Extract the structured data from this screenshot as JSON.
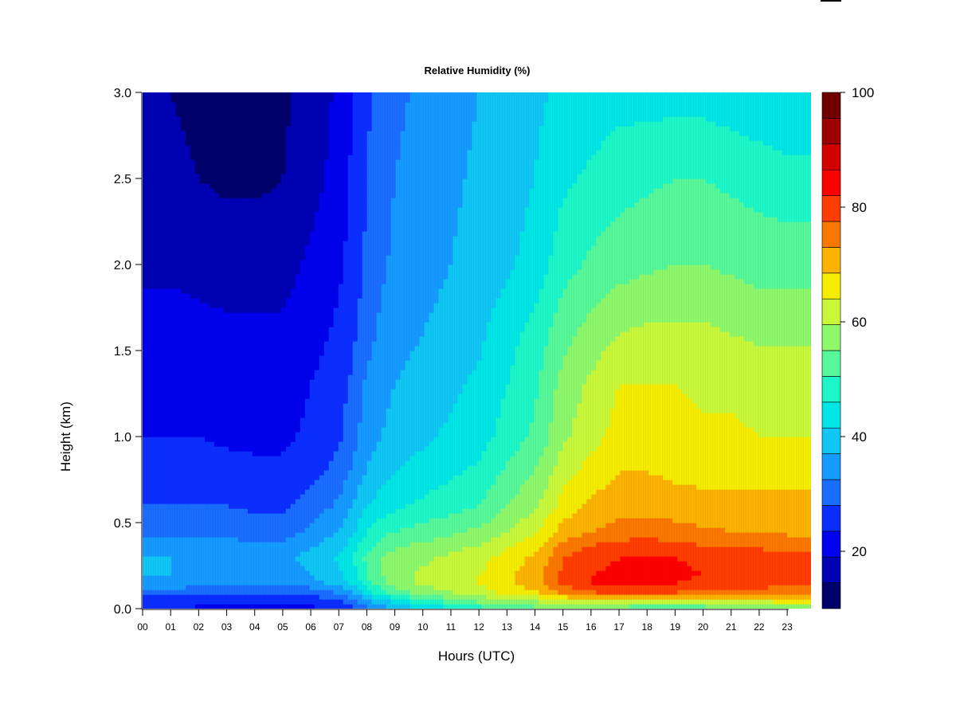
{
  "chart_data": {
    "type": "heatmap",
    "title": "Relative Humidity (%)",
    "xlabel": "Hours (UTC)",
    "ylabel": "Height (km)",
    "x_ticks": [
      "00",
      "01",
      "02",
      "03",
      "04",
      "05",
      "06",
      "07",
      "08",
      "09",
      "10",
      "11",
      "12",
      "13",
      "14",
      "15",
      "16",
      "17",
      "18",
      "19",
      "20",
      "21",
      "22",
      "23"
    ],
    "y_ticks": [
      "0.0",
      "0.5",
      "1.0",
      "1.5",
      "2.0",
      "2.5",
      "3.0"
    ],
    "xlim": [
      0,
      23.85
    ],
    "ylim": [
      0,
      3.0
    ],
    "colorbar": {
      "range": [
        10,
        100
      ],
      "step": 5,
      "tick_values": [
        20,
        40,
        60,
        80,
        100
      ],
      "tick_labels": [
        "20",
        "40",
        "60",
        "80",
        "100"
      ],
      "colors": [
        "#00006a",
        "#0000b4",
        "#0000ee",
        "#0b2eff",
        "#1a6eff",
        "#159bff",
        "#10c6f5",
        "#00e5e6",
        "#1df7c8",
        "#56f89a",
        "#8ef86b",
        "#c9f83a",
        "#f5ec00",
        "#fab300",
        "#fb7800",
        "#ff3d00",
        "#ff0000",
        "#d30000",
        "#9c0000",
        "#700000"
      ]
    },
    "height_levels_km": [
      0.0,
      0.05,
      0.1,
      0.15,
      0.2,
      0.3,
      0.35,
      0.45,
      0.6,
      0.8,
      1.0,
      1.3,
      1.6,
      2.0,
      2.5,
      3.0
    ],
    "time_hours_utc": [
      0,
      1,
      2,
      3,
      4,
      5,
      6,
      7,
      7.5,
      8,
      8.5,
      9,
      10,
      11,
      12,
      13,
      14,
      14.5,
      15,
      16,
      17,
      18,
      19,
      20,
      21,
      22,
      23,
      23.85
    ],
    "values_percent": [
      [
        25,
        25,
        24,
        24,
        23,
        23,
        24,
        26,
        29,
        33,
        36,
        40,
        44,
        48,
        52,
        55,
        58,
        60,
        60,
        58,
        56,
        55,
        55,
        56,
        57,
        58,
        62,
        62
      ],
      [
        28,
        28,
        27,
        27,
        26,
        26,
        27,
        30,
        34,
        40,
        44,
        48,
        54,
        58,
        62,
        64,
        66,
        68,
        70,
        72,
        72,
        70,
        70,
        70,
        70,
        72,
        72,
        72
      ],
      [
        33,
        33,
        32,
        32,
        31,
        31,
        32,
        36,
        40,
        48,
        53,
        58,
        62,
        65,
        68,
        72,
        75,
        78,
        82,
        85,
        88,
        88,
        86,
        85,
        85,
        84,
        82,
        82
      ],
      [
        38,
        38,
        37,
        37,
        36,
        36,
        38,
        42,
        46,
        53,
        58,
        62,
        66,
        68,
        70,
        74,
        78,
        82,
        86,
        90,
        91,
        92,
        90,
        89,
        88,
        87,
        85,
        85
      ],
      [
        40,
        40,
        39,
        39,
        38,
        38,
        40,
        44,
        48,
        56,
        60,
        63,
        66,
        68,
        70,
        74,
        78,
        82,
        86,
        90,
        91,
        92,
        91,
        90,
        89,
        88,
        86,
        86
      ],
      [
        40,
        40,
        39,
        39,
        38,
        38,
        42,
        46,
        50,
        56,
        60,
        62,
        64,
        66,
        68,
        72,
        76,
        80,
        85,
        88,
        90,
        90,
        90,
        89,
        88,
        87,
        86,
        86
      ],
      [
        37,
        37,
        37,
        37,
        36,
        36,
        40,
        44,
        48,
        54,
        58,
        60,
        62,
        64,
        66,
        70,
        74,
        78,
        82,
        86,
        88,
        88,
        87,
        86,
        85,
        85,
        84,
        84
      ],
      [
        34,
        34,
        34,
        34,
        33,
        33,
        36,
        40,
        44,
        50,
        53,
        55,
        57,
        59,
        61,
        65,
        69,
        73,
        77,
        80,
        82,
        83,
        82,
        81,
        80,
        80,
        79,
        79
      ],
      [
        30,
        30,
        30,
        30,
        29,
        29,
        32,
        36,
        40,
        45,
        47,
        49,
        51,
        53,
        55,
        60,
        64,
        68,
        72,
        76,
        78,
        78,
        77,
        76,
        76,
        76,
        76,
        76
      ],
      [
        27,
        27,
        27,
        27,
        26,
        26,
        28,
        32,
        36,
        40,
        43,
        45,
        47,
        49,
        51,
        56,
        60,
        64,
        68,
        72,
        75,
        75,
        74,
        74,
        74,
        74,
        74,
        74
      ],
      [
        25,
        25,
        25,
        24,
        24,
        24,
        26,
        29,
        33,
        38,
        40,
        42,
        44,
        46,
        48,
        52,
        56,
        60,
        64,
        68,
        72,
        72,
        72,
        71,
        71,
        70,
        70,
        70
      ],
      [
        24,
        24,
        24,
        23,
        23,
        23,
        25,
        28,
        31,
        36,
        38,
        40,
        42,
        44,
        46,
        50,
        54,
        58,
        62,
        66,
        70,
        70,
        70,
        69,
        69,
        68,
        68,
        68
      ],
      [
        22,
        22,
        21,
        21,
        21,
        21,
        23,
        26,
        29,
        33,
        36,
        38,
        40,
        42,
        44,
        48,
        52,
        55,
        58,
        62,
        65,
        66,
        66,
        66,
        65,
        64,
        64,
        64
      ],
      [
        19,
        19,
        19,
        18,
        18,
        18,
        21,
        24,
        27,
        31,
        34,
        36,
        38,
        40,
        42,
        44,
        47,
        50,
        53,
        56,
        58,
        59,
        60,
        60,
        59,
        58,
        58,
        58
      ],
      [
        16,
        16,
        15,
        14,
        14,
        15,
        18,
        22,
        26,
        30,
        33,
        35,
        37,
        39,
        41,
        43,
        45,
        47,
        49,
        51,
        53,
        54,
        55,
        55,
        54,
        53,
        52,
        52
      ],
      [
        15,
        15,
        14,
        13,
        13,
        14,
        17,
        21,
        25,
        29,
        32,
        34,
        36,
        38,
        40,
        42,
        44,
        45,
        46,
        47,
        48,
        48,
        48,
        48,
        47,
        46,
        45,
        45
      ]
    ]
  }
}
